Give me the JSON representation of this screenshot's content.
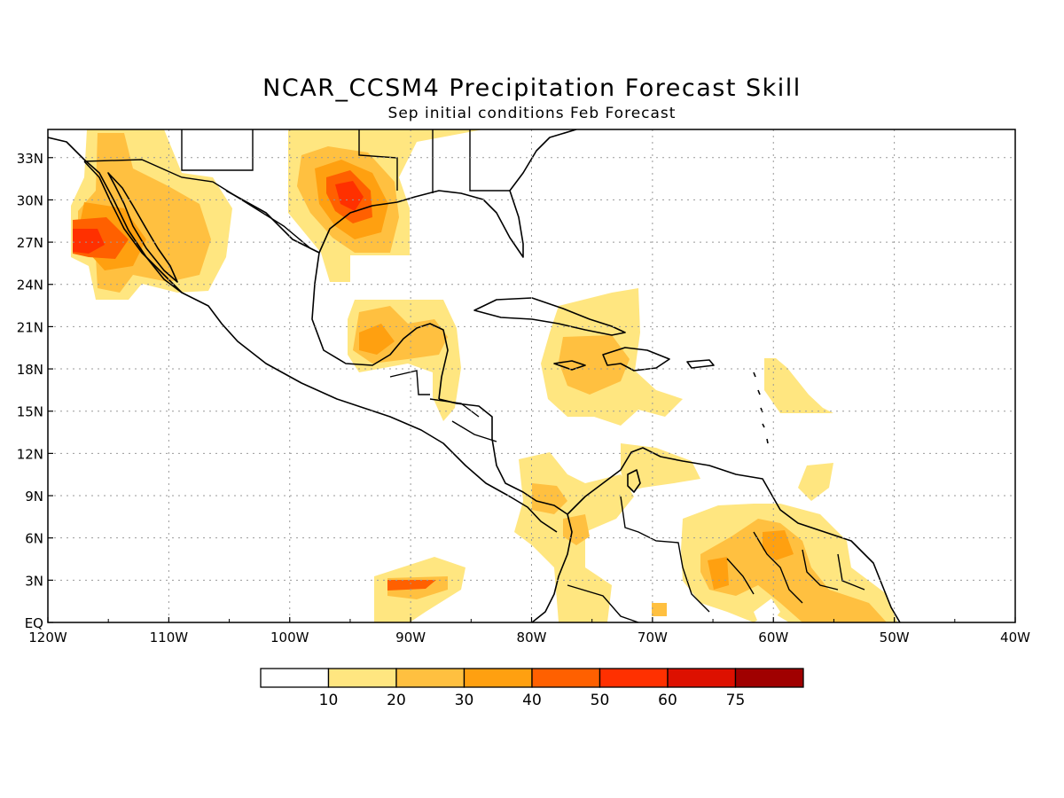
{
  "title": "NCAR_CCSM4 Precipitation Forecast Skill",
  "subtitle": "Sep initial conditions  Feb Forecast",
  "lat_labels": [
    "33N",
    "30N",
    "27N",
    "24N",
    "21N",
    "18N",
    "15N",
    "12N",
    "9N",
    "6N",
    "3N",
    "EQ"
  ],
  "lon_labels": [
    "120W",
    "110W",
    "100W",
    "90W",
    "80W",
    "70W",
    "60W",
    "50W",
    "40W"
  ],
  "colorbar": {
    "tick_labels": [
      "10",
      "20",
      "30",
      "40",
      "50",
      "60",
      "75"
    ],
    "colors": [
      "#ffffff",
      "#ffe680",
      "#ffc040",
      "#ffa010",
      "#ff6000",
      "#ff3000",
      "#dd1000",
      "#a00000"
    ]
  },
  "map_extent": {
    "lon": [
      -120,
      -40
    ],
    "lat": [
      0,
      35
    ]
  },
  "skill_areas": [
    {
      "region": "Baja California / NW Mexico",
      "lon": -115,
      "lat": 27,
      "max_skill": "50-60"
    },
    {
      "region": "Texas Gulf coast",
      "lon": -95,
      "lat": 30,
      "max_skill": "50-60"
    },
    {
      "region": "Yucatan",
      "lon": -91,
      "lat": 20,
      "max_skill": "30-40"
    },
    {
      "region": "Hispaniola",
      "lon": -72,
      "lat": 18,
      "max_skill": "20-30"
    },
    {
      "region": "Eastern Pacific",
      "lon": -90,
      "lat": 2.5,
      "max_skill": "50-60"
    },
    {
      "region": "Guianas",
      "lon": -60,
      "lat": 4,
      "max_skill": "30-40"
    }
  ]
}
